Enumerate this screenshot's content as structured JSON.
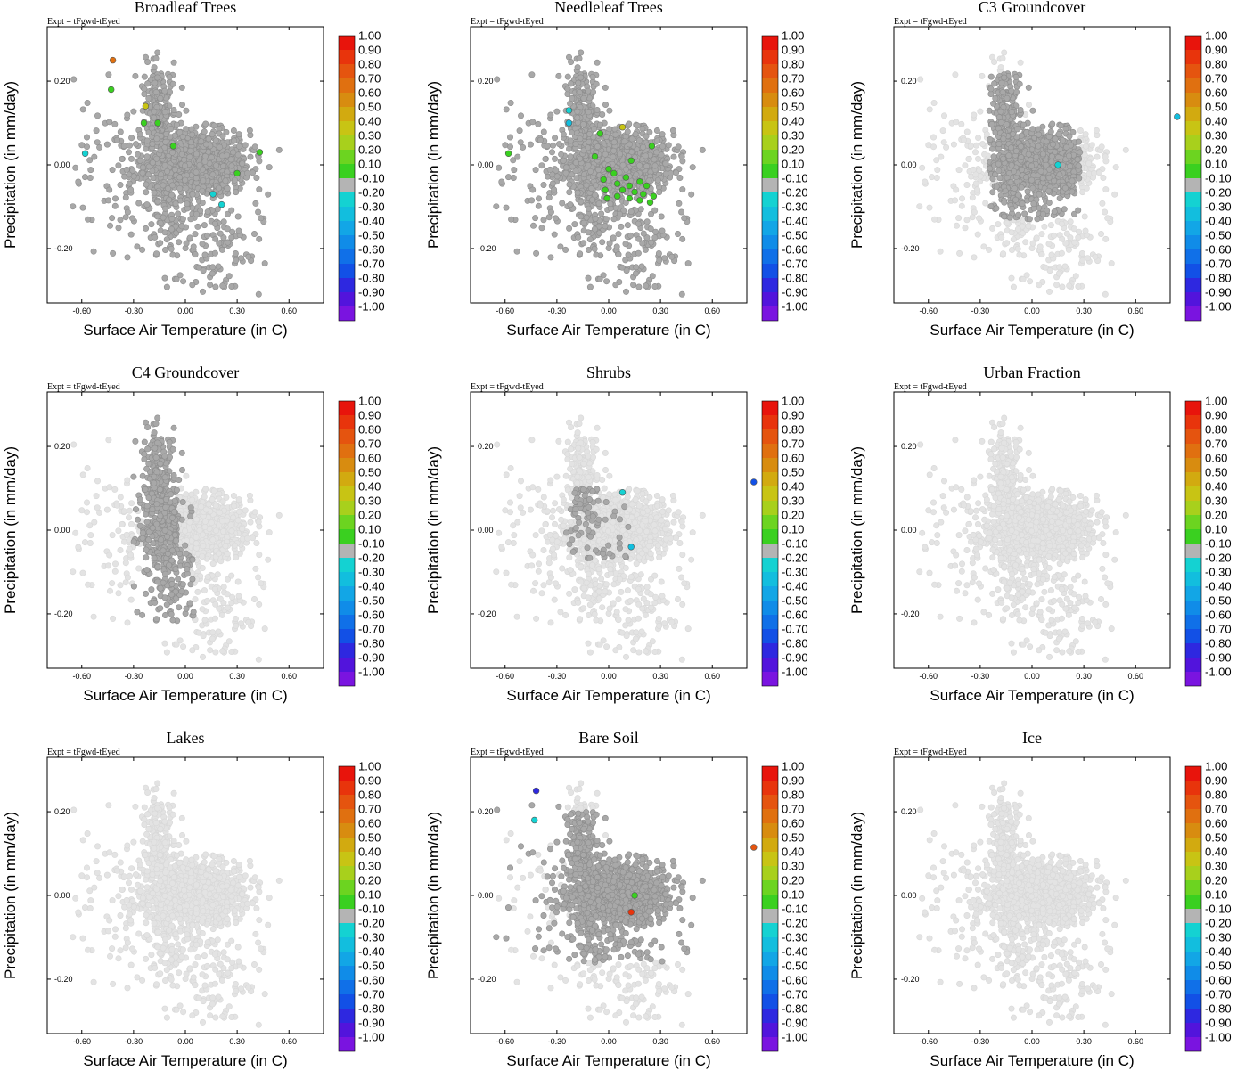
{
  "figure": {
    "expt_label": "Expt = tFgwd-tEyed",
    "xlabel": "Surface Air Temperature (in C)",
    "ylabel": "Precipitation (in mm/day)",
    "xlim": [
      -0.8,
      0.8
    ],
    "ylim": [
      -0.33,
      0.33
    ],
    "xticks": [
      -0.6,
      -0.3,
      0.0,
      0.3,
      0.6
    ],
    "xtick_labels": [
      "-0.60",
      "-0.30",
      "0.00",
      "0.30",
      "0.60"
    ],
    "yticks": [
      -0.2,
      0.0,
      0.2
    ],
    "ytick_labels": [
      "-0.20",
      "0.00",
      "0.20"
    ]
  },
  "colorbar": {
    "labels": [
      "1.00",
      "0.90",
      "0.80",
      "0.70",
      "0.60",
      "0.50",
      "0.40",
      "0.30",
      "0.20",
      "0.10",
      "-0.10",
      "-0.20",
      "-0.30",
      "-0.40",
      "-0.50",
      "-0.60",
      "-0.70",
      "-0.80",
      "-0.90",
      "-1.00"
    ],
    "colors": [
      "#e8140c",
      "#e8340c",
      "#e5540f",
      "#e07010",
      "#d88c10",
      "#d2aa10",
      "#c8c414",
      "#a8d01c",
      "#6cd420",
      "#3ad020",
      "#b4b4b4",
      "#14d2d2",
      "#12bede",
      "#12a6e6",
      "#108ce8",
      "#1070e8",
      "#1250e6",
      "#2e28e0",
      "#5214dc",
      "#7a14e0"
    ]
  },
  "chart_data": [
    {
      "type": "scatter",
      "title": "Broadleaf Trees",
      "dark_extent": "full",
      "highlights": [
        {
          "x": -0.42,
          "y": 0.25,
          "value": 0.7
        },
        {
          "x": -0.43,
          "y": 0.18,
          "value": 0.15
        },
        {
          "x": -0.23,
          "y": 0.14,
          "value": 0.4
        },
        {
          "x": -0.24,
          "y": 0.1,
          "value": 0.15
        },
        {
          "x": -0.16,
          "y": 0.1,
          "value": 0.15
        },
        {
          "x": -0.07,
          "y": 0.045,
          "value": 0.15
        },
        {
          "x": 0.43,
          "y": 0.03,
          "value": 0.15
        },
        {
          "x": -0.58,
          "y": 0.027,
          "value": -0.25
        },
        {
          "x": 0.3,
          "y": -0.02,
          "value": 0.15
        },
        {
          "x": 0.16,
          "y": -0.07,
          "value": -0.25
        },
        {
          "x": 0.21,
          "y": -0.095,
          "value": -0.25
        }
      ]
    },
    {
      "type": "scatter",
      "title": "Needleleaf Trees",
      "dark_extent": "full",
      "highlights": [
        {
          "x": -0.23,
          "y": 0.13,
          "value": -0.25
        },
        {
          "x": -0.23,
          "y": 0.1,
          "value": -0.3
        },
        {
          "x": 0.08,
          "y": 0.09,
          "value": 0.4
        },
        {
          "x": -0.05,
          "y": 0.075,
          "value": 0.15
        },
        {
          "x": 0.25,
          "y": 0.045,
          "value": 0.15
        },
        {
          "x": -0.58,
          "y": 0.027,
          "value": 0.15
        },
        {
          "x": -0.08,
          "y": 0.02,
          "value": 0.15
        },
        {
          "x": 0.13,
          "y": 0.01,
          "value": 0.15
        },
        {
          "x": 0.0,
          "y": -0.01,
          "value": 0.15
        },
        {
          "x": 0.03,
          "y": -0.02,
          "value": 0.15
        },
        {
          "x": 0.1,
          "y": -0.03,
          "value": 0.15
        },
        {
          "x": -0.03,
          "y": -0.035,
          "value": 0.15
        },
        {
          "x": 0.18,
          "y": -0.04,
          "value": 0.15
        },
        {
          "x": 0.05,
          "y": -0.045,
          "value": 0.15
        },
        {
          "x": 0.12,
          "y": -0.05,
          "value": 0.15
        },
        {
          "x": 0.22,
          "y": -0.05,
          "value": 0.15
        },
        {
          "x": -0.02,
          "y": -0.06,
          "value": 0.15
        },
        {
          "x": 0.08,
          "y": -0.06,
          "value": 0.15
        },
        {
          "x": 0.15,
          "y": -0.065,
          "value": 0.15
        },
        {
          "x": 0.2,
          "y": -0.07,
          "value": 0.15
        },
        {
          "x": 0.26,
          "y": -0.075,
          "value": 0.15
        },
        {
          "x": -0.01,
          "y": -0.08,
          "value": 0.15
        },
        {
          "x": 0.12,
          "y": -0.08,
          "value": 0.15
        },
        {
          "x": 0.18,
          "y": -0.085,
          "value": 0.15
        },
        {
          "x": 0.24,
          "y": -0.09,
          "value": 0.15
        },
        {
          "x": 0.05,
          "y": -0.075,
          "value": 0.15
        }
      ]
    },
    {
      "type": "scatter",
      "title": "C3 Groundcover",
      "dark_extent": "c3",
      "highlights": [
        {
          "x": 0.84,
          "y": 0.115,
          "value": -0.35
        },
        {
          "x": 0.15,
          "y": 0.0,
          "value": -0.25
        }
      ]
    },
    {
      "type": "scatter",
      "title": "C4 Groundcover",
      "dark_extent": "c4",
      "highlights": []
    },
    {
      "type": "scatter",
      "title": "Shrubs",
      "dark_extent": "shrubs",
      "highlights": [
        {
          "x": 0.84,
          "y": 0.115,
          "value": -0.75
        },
        {
          "x": 0.08,
          "y": 0.09,
          "value": -0.25
        },
        {
          "x": 0.13,
          "y": -0.04,
          "value": -0.35
        }
      ]
    },
    {
      "type": "scatter",
      "title": "Urban Fraction",
      "dark_extent": "none",
      "highlights": []
    },
    {
      "type": "scatter",
      "title": "Lakes",
      "dark_extent": "none",
      "highlights": []
    },
    {
      "type": "scatter",
      "title": "Bare Soil",
      "dark_extent": "bare",
      "highlights": [
        {
          "x": -0.42,
          "y": 0.25,
          "value": -0.85
        },
        {
          "x": -0.43,
          "y": 0.18,
          "value": -0.25
        },
        {
          "x": 0.84,
          "y": 0.115,
          "value": 0.85
        },
        {
          "x": 0.15,
          "y": 0.0,
          "value": 0.15
        },
        {
          "x": 0.13,
          "y": -0.04,
          "value": 0.95
        }
      ]
    },
    {
      "type": "scatter",
      "title": "Ice",
      "dark_extent": "none",
      "highlights": []
    }
  ]
}
